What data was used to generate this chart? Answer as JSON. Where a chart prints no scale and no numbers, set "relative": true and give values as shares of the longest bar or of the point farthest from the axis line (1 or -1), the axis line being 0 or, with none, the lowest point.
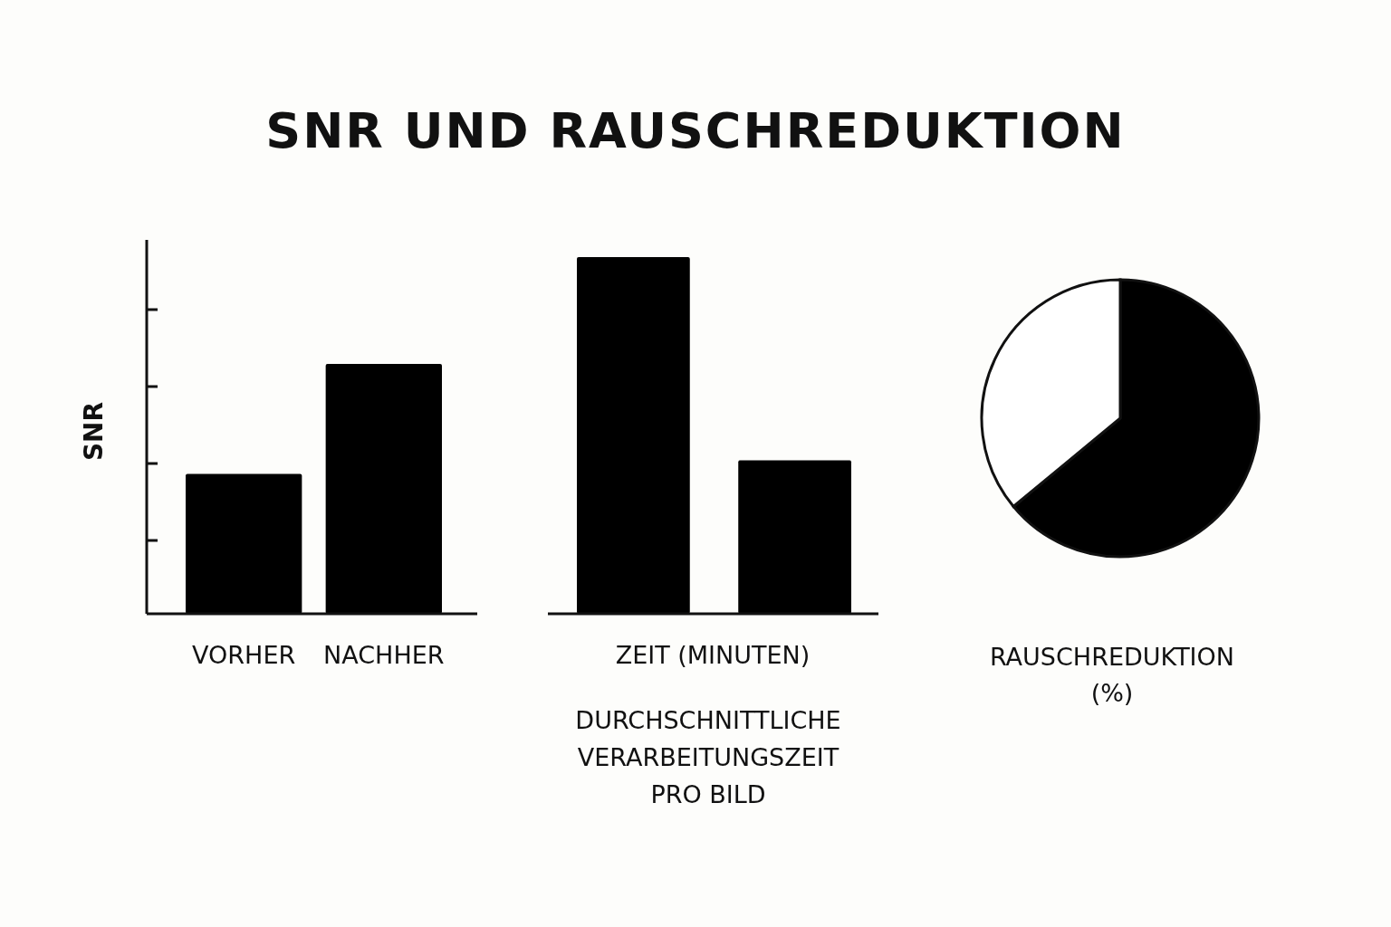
{
  "chart_data": [
    {
      "type": "bar",
      "title": "SNR UND RAUSCHREDUKTION",
      "ylabel": "SNR",
      "relative": true,
      "categories": [
        "VORHER",
        "NACHHER"
      ],
      "values": [
        0.56,
        1
      ],
      "color": "#000000"
    },
    {
      "type": "bar",
      "xlabel": "ZEIT (MINUTEN)",
      "relative": true,
      "categories": [
        null,
        null
      ],
      "values": [
        1,
        0.43
      ],
      "color": "#000000",
      "annotations": [
        "DURCHSCHNITTLICHE VERARBEITUNGSZEIT PRO BILD"
      ]
    },
    {
      "type": "pie",
      "xlabel": "RAUSCHREDUKTION (%)",
      "categories": [
        null,
        null
      ],
      "values": [
        64,
        36
      ],
      "colors": [
        "#000000",
        "#ffffff"
      ]
    }
  ]
}
